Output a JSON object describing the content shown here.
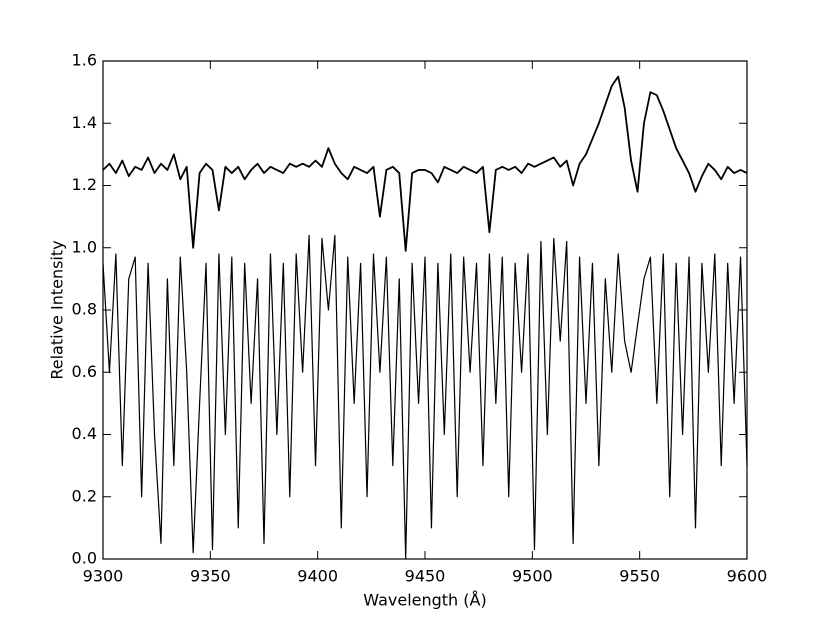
{
  "chart_data": {
    "type": "line",
    "xlabel": "Wavelength (Å)",
    "ylabel": "Relative Intensity",
    "xlim": [
      9300,
      9600
    ],
    "ylim": [
      0,
      1.6
    ],
    "xticks": [
      9300,
      9350,
      9400,
      9450,
      9500,
      9550,
      9600
    ],
    "yticks": [
      {
        "value": 0,
        "label": "0.0"
      },
      0.2,
      0.4,
      0.6,
      0.8,
      {
        "value": 1,
        "label": "1.0"
      },
      1.2,
      1.4,
      1.6
    ],
    "grid": false,
    "x": [
      9300,
      9303,
      9306,
      9309,
      9312,
      9315,
      9318,
      9321,
      9324,
      9327,
      9330,
      9333,
      9336,
      9339,
      9342,
      9345,
      9348,
      9351,
      9354,
      9357,
      9360,
      9363,
      9366,
      9369,
      9372,
      9375,
      9378,
      9381,
      9384,
      9387,
      9390,
      9393,
      9396,
      9399,
      9402,
      9405,
      9408,
      9411,
      9414,
      9417,
      9420,
      9423,
      9426,
      9429,
      9432,
      9435,
      9438,
      9441,
      9444,
      9447,
      9450,
      9453,
      9456,
      9459,
      9462,
      9465,
      9468,
      9471,
      9474,
      9477,
      9480,
      9483,
      9486,
      9489,
      9492,
      9495,
      9498,
      9501,
      9504,
      9507,
      9510,
      9513,
      9516,
      9519,
      9522,
      9525,
      9528,
      9531,
      9534,
      9537,
      9540,
      9543,
      9546,
      9549,
      9552,
      9555,
      9558,
      9561,
      9564,
      9567,
      9570,
      9573,
      9576,
      9579,
      9582,
      9585,
      9588,
      9591,
      9594,
      9597,
      9600
    ],
    "series": [
      {
        "color": "#000000",
        "width": 1.8,
        "values": [
          1.25,
          1.27,
          1.24,
          1.28,
          1.23,
          1.26,
          1.25,
          1.29,
          1.24,
          1.27,
          1.25,
          1.3,
          1.22,
          1.26,
          1.0,
          1.24,
          1.27,
          1.25,
          1.12,
          1.26,
          1.24,
          1.26,
          1.22,
          1.25,
          1.27,
          1.24,
          1.26,
          1.25,
          1.24,
          1.27,
          1.26,
          1.27,
          1.26,
          1.28,
          1.26,
          1.32,
          1.27,
          1.24,
          1.22,
          1.26,
          1.25,
          1.24,
          1.26,
          1.1,
          1.25,
          1.26,
          1.24,
          0.99,
          1.24,
          1.25,
          1.25,
          1.24,
          1.21,
          1.26,
          1.25,
          1.24,
          1.26,
          1.25,
          1.24,
          1.26,
          1.05,
          1.25,
          1.26,
          1.25,
          1.26,
          1.24,
          1.27,
          1.26,
          1.27,
          1.28,
          1.29,
          1.26,
          1.28,
          1.2,
          1.27,
          1.3,
          1.35,
          1.4,
          1.46,
          1.52,
          1.55,
          1.45,
          1.28,
          1.18,
          1.4,
          1.5,
          1.49,
          1.44,
          1.38,
          1.32,
          1.28,
          1.24,
          1.18,
          1.23,
          1.27,
          1.25,
          1.22,
          1.26,
          1.24,
          1.25,
          1.24
        ]
      },
      {
        "color": "#000000",
        "width": 1.2,
        "values": [
          0.95,
          0.6,
          0.98,
          0.3,
          0.9,
          0.97,
          0.2,
          0.95,
          0.4,
          0.05,
          0.9,
          0.3,
          0.97,
          0.6,
          0.02,
          0.5,
          0.95,
          0.03,
          0.98,
          0.4,
          0.97,
          0.1,
          0.95,
          0.5,
          0.9,
          0.05,
          0.98,
          0.4,
          0.95,
          0.2,
          0.98,
          0.6,
          1.04,
          0.3,
          1.03,
          0.8,
          1.04,
          0.1,
          0.97,
          0.5,
          0.95,
          0.2,
          0.98,
          0.6,
          0.97,
          0.3,
          0.9,
          0.0,
          0.95,
          0.5,
          0.97,
          0.1,
          0.95,
          0.4,
          0.98,
          0.2,
          0.97,
          0.6,
          0.95,
          0.3,
          0.98,
          0.5,
          0.97,
          0.2,
          0.95,
          0.6,
          0.98,
          0.03,
          1.02,
          0.4,
          1.03,
          0.7,
          1.02,
          0.05,
          0.97,
          0.5,
          0.95,
          0.3,
          0.9,
          0.6,
          0.98,
          0.7,
          0.6,
          0.75,
          0.9,
          0.97,
          0.5,
          0.98,
          0.2,
          0.95,
          0.4,
          0.97,
          0.1,
          0.95,
          0.6,
          0.98,
          0.3,
          0.95,
          0.5,
          0.97,
          0.3
        ]
      }
    ]
  }
}
